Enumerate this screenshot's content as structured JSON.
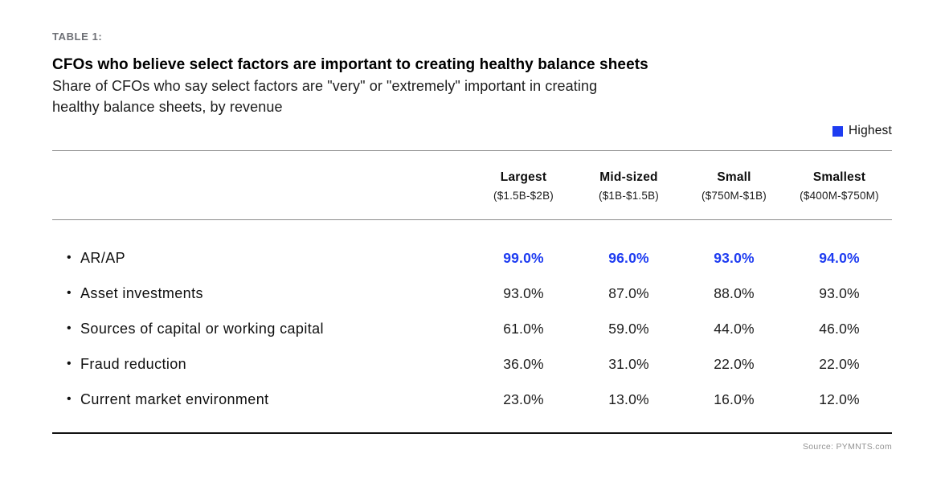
{
  "page": {
    "kicker": "TABLE 1:",
    "title": "CFOs who believe select factors are important to creating healthy balance sheets",
    "subtitle_line1": "Share of CFOs who say select factors are \"very\" or \"extremely\" important in creating",
    "subtitle_line2": "healthy balance sheets, by revenue",
    "source": "Source: PYMNTS.com"
  },
  "legend": {
    "label": "Highest",
    "swatch_color": "#1e3cf1"
  },
  "colors": {
    "highlight": "#1e3cf1",
    "kicker": "#6e7076",
    "rule_gray": "#8c8c8c",
    "rule_dark": "#121212",
    "source_text": "#939393"
  },
  "table": {
    "columns": [
      {
        "name": "Largest",
        "range": "($1.5B-$2B)"
      },
      {
        "name": "Mid-sized",
        "range": "($1B-$1.5B)"
      },
      {
        "name": "Small",
        "range": "($750M-$1B)"
      },
      {
        "name": "Smallest",
        "range": "($400M-$750M)"
      }
    ],
    "rows": [
      {
        "factor": "AR/AP",
        "values": [
          "99.0%",
          "96.0%",
          "93.0%",
          "94.0%"
        ],
        "highest": true
      },
      {
        "factor": "Asset investments",
        "values": [
          "93.0%",
          "87.0%",
          "88.0%",
          "93.0%"
        ],
        "highest": false
      },
      {
        "factor": "Sources of capital or working capital",
        "values": [
          "61.0%",
          "59.0%",
          "44.0%",
          "46.0%"
        ],
        "highest": false
      },
      {
        "factor": "Fraud reduction",
        "values": [
          "36.0%",
          "31.0%",
          "22.0%",
          "22.0%"
        ],
        "highest": false
      },
      {
        "factor": "Current market environment",
        "values": [
          "23.0%",
          "13.0%",
          "16.0%",
          "12.0%"
        ],
        "highest": false
      }
    ]
  },
  "chart_data": {
    "type": "table",
    "title": "CFOs who believe select factors are important to creating healthy balance sheets",
    "subtitle": "Share of CFOs who say select factors are \"very\" or \"extremely\" important in creating healthy balance sheets, by revenue",
    "categories": [
      "Largest ($1.5B-$2B)",
      "Mid-sized ($1B-$1.5B)",
      "Small ($750M-$1B)",
      "Smallest ($400M-$750M)"
    ],
    "series": [
      {
        "name": "AR/AP",
        "values": [
          99.0,
          96.0,
          93.0,
          94.0
        ],
        "highest": true
      },
      {
        "name": "Asset investments",
        "values": [
          93.0,
          87.0,
          88.0,
          93.0
        ],
        "highest": false
      },
      {
        "name": "Sources of capital or working capital",
        "values": [
          61.0,
          59.0,
          44.0,
          46.0
        ],
        "highest": false
      },
      {
        "name": "Fraud reduction",
        "values": [
          36.0,
          31.0,
          22.0,
          22.0
        ],
        "highest": false
      },
      {
        "name": "Current market environment",
        "values": [
          23.0,
          13.0,
          16.0,
          12.0
        ],
        "highest": false
      }
    ],
    "unit": "%",
    "legend": [
      "Highest"
    ],
    "legend_position": "top-right",
    "source": "Source: PYMNTS.com"
  }
}
